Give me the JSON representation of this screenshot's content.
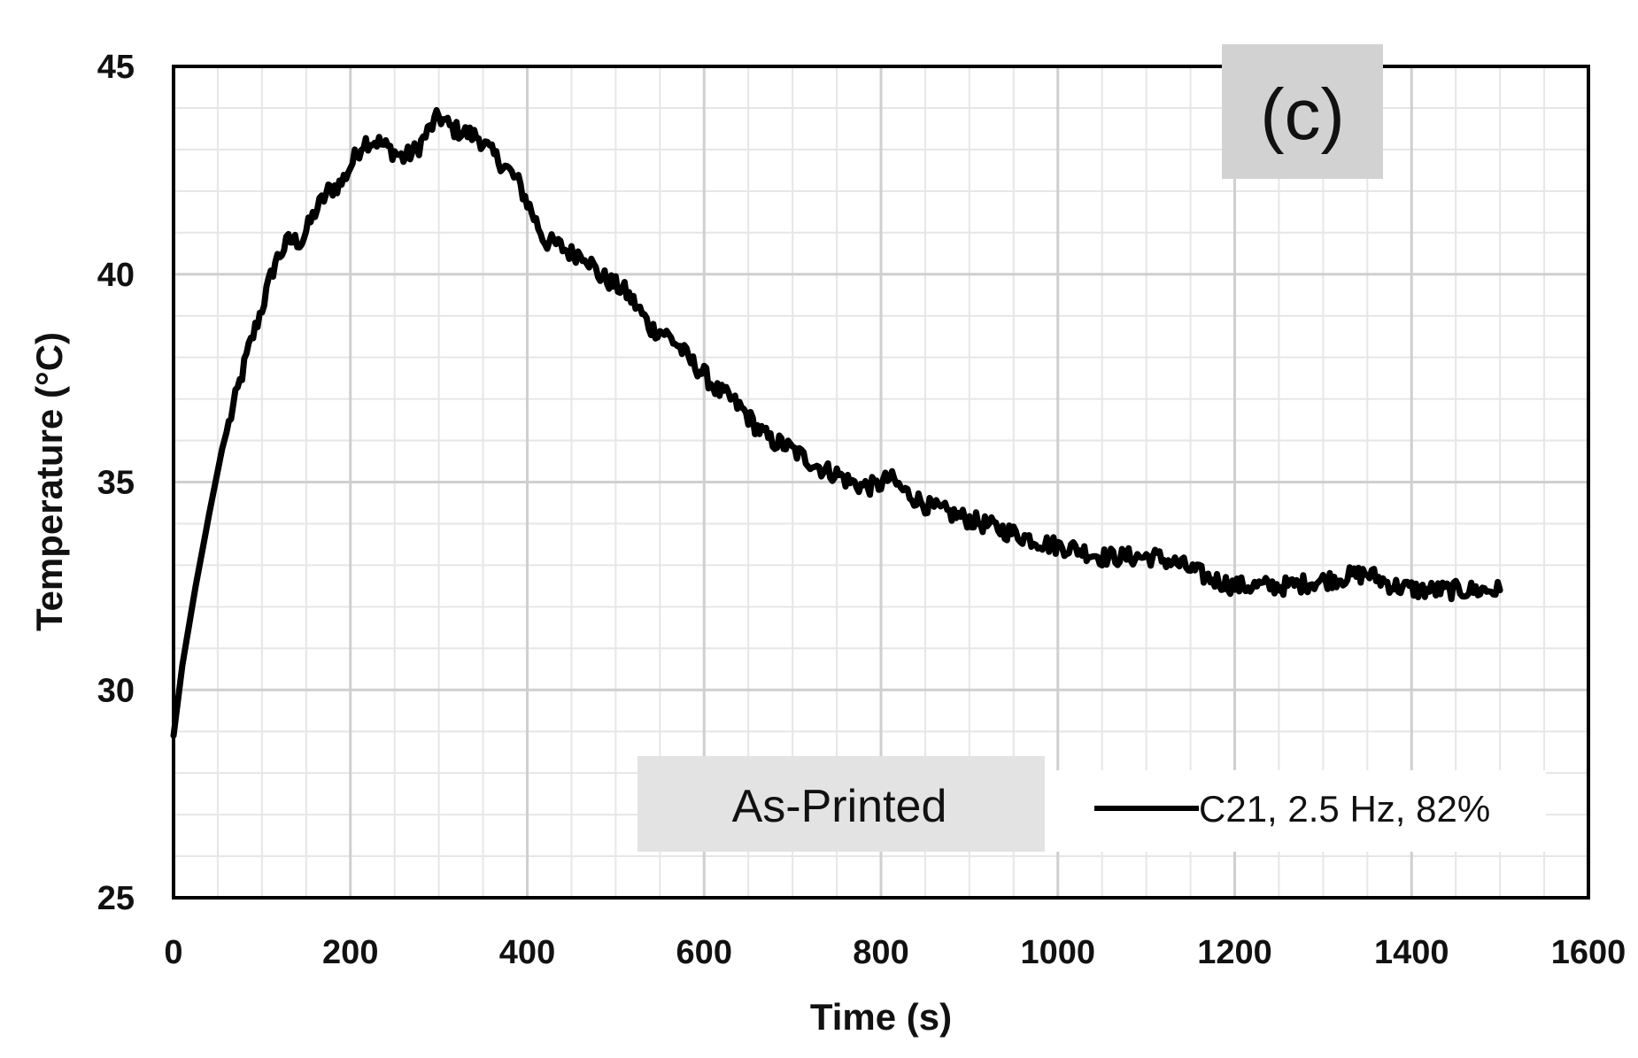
{
  "chart_data": {
    "type": "line",
    "title": "",
    "xlabel": "Time (s)",
    "ylabel": "Temperature (°C)",
    "xlim": [
      0,
      1600
    ],
    "ylim": [
      25,
      45
    ],
    "x_major_ticks": [
      0,
      200,
      400,
      600,
      800,
      1000,
      1200,
      1400,
      1600
    ],
    "y_major_ticks": [
      25,
      30,
      35,
      40,
      45
    ],
    "x_minor_step": 50,
    "y_minor_step": 1,
    "grid": true,
    "legend_position": "bottom-right",
    "panel_label": "(c)",
    "annotation": "As-Printed",
    "series": [
      {
        "name": "C21, 2.5 Hz, 82%",
        "color": "#000000",
        "x": [
          0,
          10,
          25,
          40,
          55,
          70,
          85,
          100,
          115,
          130,
          145,
          160,
          175,
          190,
          205,
          215,
          230,
          245,
          260,
          275,
          290,
          300,
          315,
          330,
          345,
          360,
          375,
          390,
          405,
          420,
          435,
          450,
          465,
          480,
          495,
          510,
          525,
          540,
          555,
          570,
          585,
          600,
          615,
          630,
          645,
          660,
          675,
          690,
          705,
          720,
          735,
          750,
          765,
          780,
          795,
          810,
          825,
          840,
          855,
          870,
          885,
          900,
          930,
          960,
          990,
          1020,
          1050,
          1080,
          1110,
          1140,
          1170,
          1200,
          1230,
          1260,
          1290,
          1320,
          1350,
          1380,
          1410,
          1440,
          1470,
          1500
        ],
        "y": [
          28.9,
          30.6,
          32.5,
          34.2,
          35.8,
          37.0,
          38.2,
          39.2,
          40.3,
          40.8,
          40.8,
          41.5,
          42.0,
          42.2,
          42.8,
          43.2,
          43.2,
          43.0,
          42.8,
          43.0,
          43.5,
          43.8,
          43.5,
          43.4,
          43.3,
          42.9,
          42.6,
          42.2,
          41.5,
          40.8,
          40.7,
          40.5,
          40.5,
          40.0,
          39.8,
          39.6,
          39.2,
          38.7,
          38.6,
          38.3,
          37.9,
          37.6,
          37.2,
          37.0,
          36.7,
          36.3,
          36.0,
          35.9,
          35.7,
          35.5,
          35.3,
          35.2,
          35.0,
          34.9,
          34.9,
          35.1,
          34.8,
          34.6,
          34.4,
          34.3,
          34.2,
          34.1,
          33.9,
          33.7,
          33.5,
          33.4,
          33.2,
          33.2,
          33.2,
          33.0,
          32.7,
          32.5,
          32.5,
          32.5,
          32.6,
          32.7,
          32.8,
          32.5,
          32.4,
          32.4,
          32.4,
          32.4
        ]
      }
    ]
  }
}
